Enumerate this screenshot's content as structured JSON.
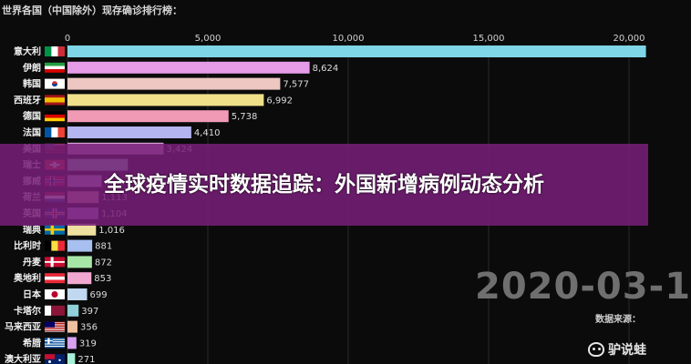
{
  "chart_data": {
    "type": "bar",
    "orientation": "horizontal",
    "title": "世界各国（中国除外）现存确诊排行榜：",
    "xlim": [
      0,
      20000
    ],
    "ticks": [
      "0",
      "5,000",
      "10,000",
      "15,000",
      "20,000"
    ],
    "tick_values": [
      0,
      5000,
      10000,
      15000,
      20000
    ],
    "grid": true,
    "bars": [
      {
        "label": "意大利",
        "value": 20603,
        "value_label": "",
        "color": "#7fd6e6",
        "flag": "italy"
      },
      {
        "label": "伊朗",
        "value": 8624,
        "value_label": "8,624",
        "color": "#e69be6",
        "flag": "iran"
      },
      {
        "label": "韩国",
        "value": 7577,
        "value_label": "7,577",
        "color": "#eec7c2",
        "flag": "korea"
      },
      {
        "label": "西班牙",
        "value": 6992,
        "value_label": "6,992",
        "color": "#f0e08a",
        "flag": "spain"
      },
      {
        "label": "德国",
        "value": 5738,
        "value_label": "5,738",
        "color": "#f09ab6",
        "flag": "germany"
      },
      {
        "label": "法国",
        "value": 4410,
        "value_label": "4,410",
        "color": "#b4b4f0",
        "flag": "france"
      },
      {
        "label": "美国",
        "value": 3424,
        "value_label": "3,424",
        "color": "#d6a0d6",
        "flag": "usa"
      },
      {
        "label": "瑞士",
        "value": 2150,
        "value_label": "",
        "color": "#8fd6c6",
        "flag": "swiss"
      },
      {
        "label": "挪威",
        "value": 1217,
        "value_label": "1,217",
        "color": "#c7b8e6",
        "flag": "norway"
      },
      {
        "label": "荷兰",
        "value": 1113,
        "value_label": "1,113",
        "color": "#e6a0b4",
        "flag": "netherlands"
      },
      {
        "label": "英国",
        "value": 1104,
        "value_label": "1,104",
        "color": "#b890e6",
        "flag": "uk"
      },
      {
        "label": "瑞典",
        "value": 1016,
        "value_label": "1,016",
        "color": "#f0e0a0",
        "flag": "sweden"
      },
      {
        "label": "比利时",
        "value": 881,
        "value_label": "881",
        "color": "#a8c0f0",
        "flag": "belgium"
      },
      {
        "label": "丹麦",
        "value": 872,
        "value_label": "872",
        "color": "#a8e6a8",
        "flag": "denmark"
      },
      {
        "label": "奥地利",
        "value": 853,
        "value_label": "853",
        "color": "#f0a8d0",
        "flag": "austria"
      },
      {
        "label": "日本",
        "value": 699,
        "value_label": "699",
        "color": "#c0d8f0",
        "flag": "japan"
      },
      {
        "label": "卡塔尔",
        "value": 397,
        "value_label": "397",
        "color": "#90d0d8",
        "flag": "qatar"
      },
      {
        "label": "马来西亚",
        "value": 356,
        "value_label": "356",
        "color": "#f0c0a0",
        "flag": "malaysia"
      },
      {
        "label": "希腊",
        "value": 319,
        "value_label": "319",
        "color": "#d8a0f0",
        "flag": "greece"
      },
      {
        "label": "澳大利亚",
        "value": 271,
        "value_label": "271",
        "color": "#a8f0d8",
        "flag": "australia"
      }
    ]
  },
  "date_readout": "2020-03-1",
  "source_label": "数据来源：",
  "headline": "全球疫情实时数据追踪：外国新增病例动态分析",
  "watermark": {
    "text": "驴说蛙",
    "icon": "weibo-icon"
  }
}
